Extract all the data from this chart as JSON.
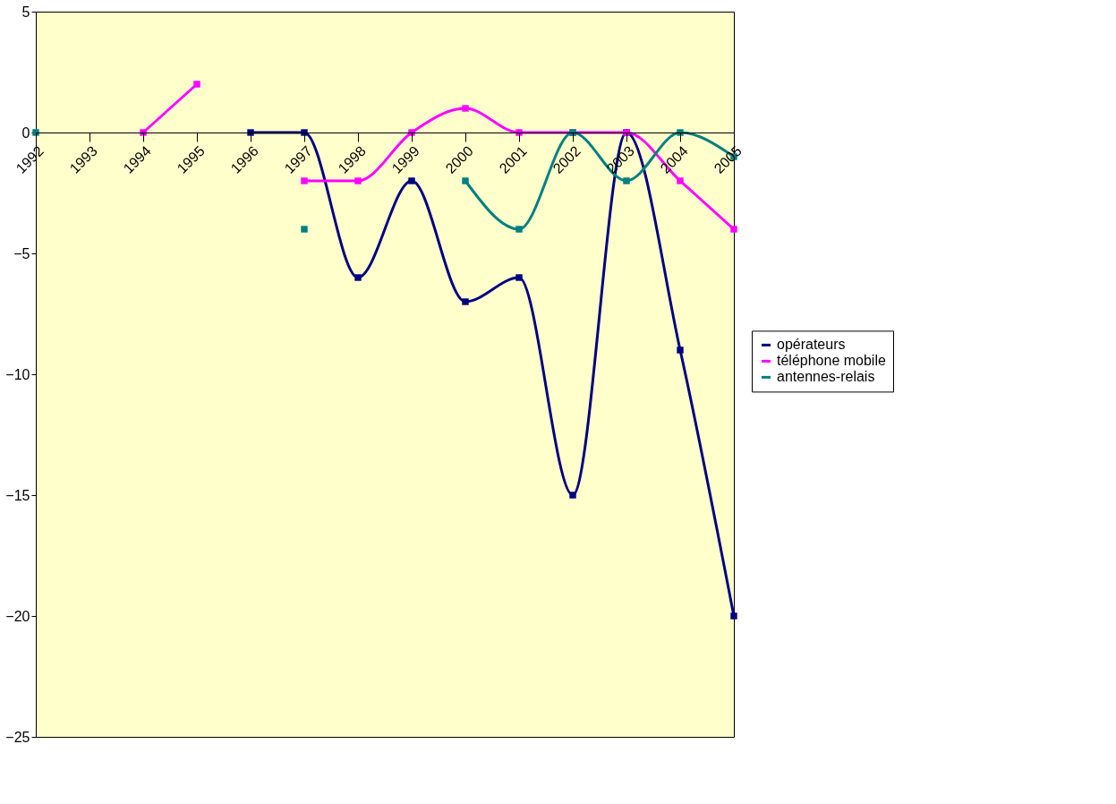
{
  "chart_data": {
    "type": "line",
    "categories": [
      "1992",
      "1993",
      "1994",
      "1995",
      "1996",
      "1997",
      "1998",
      "1999",
      "2000",
      "2001",
      "2002",
      "2003",
      "2004",
      "2005"
    ],
    "series": [
      {
        "name": "opérateurs",
        "color": "#000080",
        "values": [
          null,
          null,
          null,
          null,
          0,
          0,
          -6,
          -2,
          -7,
          -6,
          -15,
          0,
          -9,
          -20
        ]
      },
      {
        "name": "téléphone mobile",
        "color": "#ff00ff",
        "values": [
          null,
          null,
          0,
          2,
          null,
          -2,
          -2,
          0,
          1,
          0,
          0,
          0,
          -2,
          -4
        ]
      },
      {
        "name": "antennes-relais",
        "color": "#008080",
        "values": [
          0,
          null,
          null,
          null,
          null,
          -4,
          null,
          null,
          -2,
          -4,
          0,
          -2,
          0,
          -1
        ]
      }
    ],
    "ylim": [
      -25,
      5
    ],
    "yticks": [
      -25,
      -20,
      -15,
      -10,
      -5,
      0,
      5
    ],
    "grid": false,
    "legend": "right",
    "marker": "square",
    "line_style": "solid"
  }
}
